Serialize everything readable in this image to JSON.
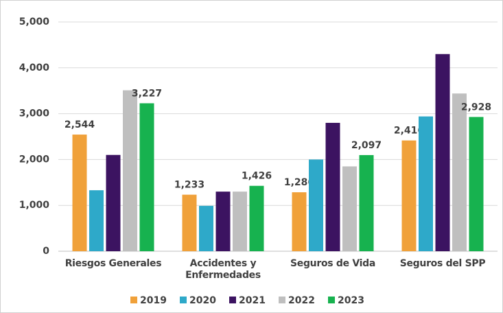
{
  "chart_data": {
    "type": "bar",
    "categories": [
      "Riesgos Generales",
      "Accidentes y Enfermedades",
      "Seguros de Vida",
      "Seguros del SPP"
    ],
    "series": [
      {
        "name": "2019",
        "color": "#f0a13a",
        "values": [
          2544,
          1233,
          1286,
          2416
        ],
        "value_labels": [
          "2,544",
          "1,233",
          "1,286",
          "2,416"
        ]
      },
      {
        "name": "2020",
        "color": "#2ea9c9",
        "values": [
          1330,
          990,
          2000,
          2940
        ]
      },
      {
        "name": "2021",
        "color": "#3c1361",
        "values": [
          2100,
          1300,
          2800,
          4300
        ]
      },
      {
        "name": "2022",
        "color": "#bfbfbf",
        "values": [
          3510,
          1300,
          1850,
          3440
        ]
      },
      {
        "name": "2023",
        "color": "#17b24f",
        "values": [
          3227,
          1426,
          2097,
          2928
        ],
        "value_labels": [
          "3,227",
          "1,426",
          "2,097",
          "2,928"
        ]
      }
    ],
    "ylim": [
      0,
      5000
    ],
    "yticks": [
      0,
      {
        "value": 1000,
        "label": "1,000"
      },
      {
        "value": 2000,
        "label": "2,000"
      },
      {
        "value": 3000,
        "label": "3,000"
      },
      {
        "value": 4000,
        "label": "4,000"
      },
      {
        "value": 5000,
        "label": "5,000"
      }
    ],
    "grid": true,
    "legend": "bottom"
  }
}
